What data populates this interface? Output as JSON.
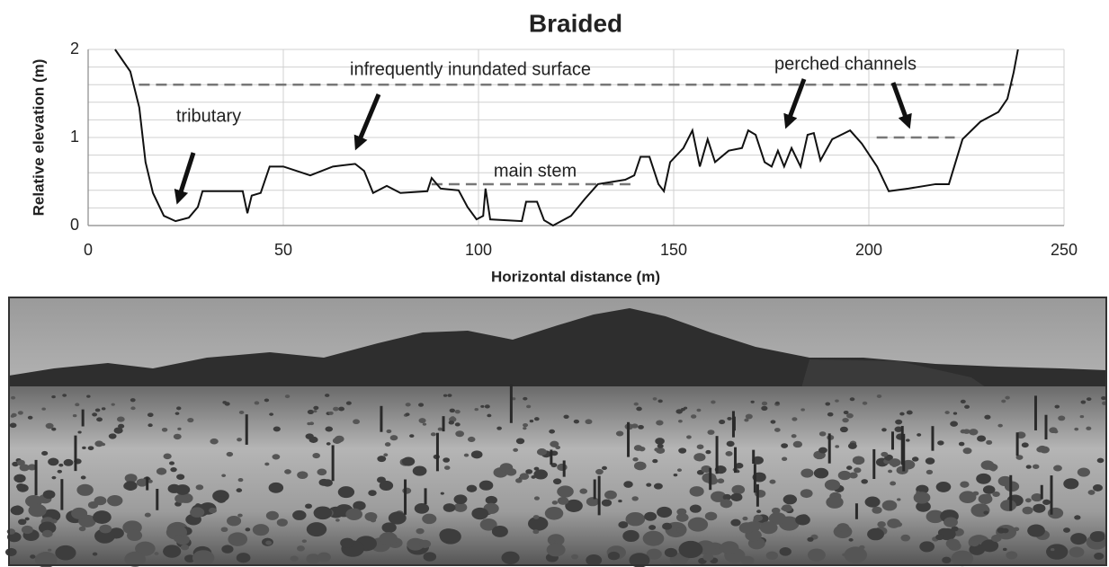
{
  "chart_data": {
    "type": "line",
    "title": "Braided",
    "xlabel": "Horizontal distance (m)",
    "ylabel": "Relative elevation (m)",
    "xlim": [
      0,
      250
    ],
    "xticks": [
      0,
      50,
      100,
      150,
      200,
      250
    ],
    "ylim": [
      0,
      2
    ],
    "yticks": [
      0,
      1,
      2
    ],
    "minor_yticks": [
      0.2,
      0.4,
      0.6,
      0.8,
      1.2,
      1.4,
      1.6,
      1.8
    ],
    "grid": true,
    "series": [
      {
        "color": "#111111",
        "x": [
          6.9,
          10.8,
          13.1,
          14.7,
          16.6,
          19.4,
          22.4,
          25.8,
          28.1,
          29.3,
          39.6,
          40.8,
          41.9,
          44.2,
          46.5,
          50.0,
          56.9,
          62.7,
          68.4,
          70.7,
          73.0,
          76.5,
          80.0,
          86.9,
          88.0,
          90.3,
          94.9,
          97.2,
          99.5,
          101.2,
          101.8,
          103.0,
          111.1,
          112.2,
          115.0,
          116.8,
          119.1,
          123.7,
          127.2,
          130.6,
          137.6,
          139.9,
          141.5,
          143.8,
          146.1,
          147.5,
          149.1,
          152.5,
          154.8,
          156.7,
          158.7,
          160.6,
          164.1,
          167.5,
          169.1,
          171.0,
          173.3,
          175.1,
          176.7,
          178.3,
          180.2,
          182.5,
          184.3,
          185.9,
          187.6,
          190.6,
          195.2,
          198.2,
          202.1,
          205.1,
          210.1,
          217.1,
          220.5,
          224.0,
          228.6,
          233.2,
          235.5,
          237.1,
          238.2
        ],
        "values": [
          2.0,
          1.75,
          1.34,
          0.72,
          0.37,
          0.11,
          0.05,
          0.09,
          0.21,
          0.39,
          0.39,
          0.14,
          0.34,
          0.37,
          0.67,
          0.67,
          0.57,
          0.67,
          0.7,
          0.62,
          0.37,
          0.45,
          0.37,
          0.39,
          0.54,
          0.42,
          0.4,
          0.21,
          0.07,
          0.11,
          0.42,
          0.07,
          0.05,
          0.27,
          0.27,
          0.06,
          0.0,
          0.11,
          0.3,
          0.47,
          0.52,
          0.57,
          0.78,
          0.78,
          0.47,
          0.39,
          0.72,
          0.88,
          1.08,
          0.67,
          0.98,
          0.72,
          0.85,
          0.88,
          1.08,
          1.03,
          0.72,
          0.67,
          0.85,
          0.67,
          0.88,
          0.67,
          1.03,
          1.05,
          0.74,
          0.98,
          1.08,
          0.93,
          0.67,
          0.39,
          0.42,
          0.47,
          0.47,
          0.98,
          1.18,
          1.29,
          1.44,
          1.74,
          2.0
        ]
      }
    ],
    "reference_lines": [
      {
        "y": 1.6,
        "x": [
          13,
          237
        ]
      },
      {
        "y": 0.47,
        "x": [
          88,
          139
        ]
      },
      {
        "y": 1.0,
        "x": [
          202,
          222
        ]
      }
    ],
    "annotations": [
      "tributary",
      "infrequently inundated surface",
      "main stem",
      "perched channels"
    ]
  }
}
